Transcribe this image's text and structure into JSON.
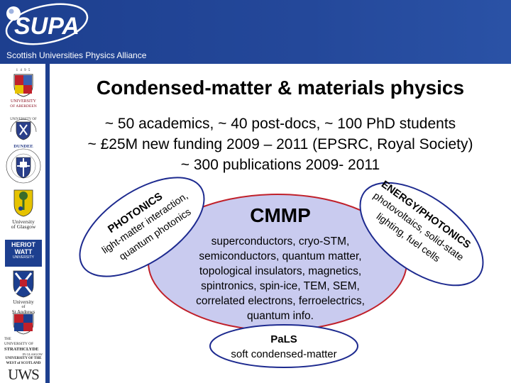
{
  "header": {
    "logo_text": "SUPA",
    "tagline": "Scottish Universities Physics Alliance",
    "colors": {
      "bar": "#1d3f8f",
      "accent": "#2a52a6"
    }
  },
  "sidebar": {
    "universities": [
      {
        "name": "University of Aberdeen",
        "label_top": "UNIVERSITY",
        "label_bottom": "OF ABERDEEN",
        "years": "1 4 9 5"
      },
      {
        "name": "University of Dundee",
        "label": "DUNDEE",
        "ring": "UNIVERSITY OF"
      },
      {
        "name": "University of Edinburgh",
        "ring": "THE UNIVERSITY OF EDINBURGH"
      },
      {
        "name": "University of Glasgow",
        "label_top": "University",
        "label_bottom": "of Glasgow"
      },
      {
        "name": "Heriot-Watt University",
        "label_top": "HERIOT",
        "label_mid": "WATT",
        "label_bottom": "UNIVERSITY"
      },
      {
        "name": "University of St Andrews",
        "label_top": "University",
        "label_mid": "of",
        "label_bottom": "St Andrews"
      },
      {
        "name": "University of Strathclyde",
        "label_top": "THE",
        "label_mid": "UNIVERSITY OF",
        "label_bottom": "STRATHCLYDE",
        "label_extra": "IN GLASGOW"
      },
      {
        "name": "University of the West of Scotland",
        "label_top": "UNIVERSITY OF THE",
        "label_mid": "WEST of SCOTLAND",
        "label_bottom": "UWS"
      }
    ]
  },
  "main": {
    "title": "Condensed-matter & materials physics",
    "stats": [
      "~ 50 academics, ~ 40 post-docs, ~ 100 PhD students",
      "~ £25M new funding 2009 – 2011 (EPSRC, Royal Society)",
      "~ 300 publications 2009- 2011"
    ]
  },
  "cmmp": {
    "title": "CMMP",
    "lines": [
      "superconductors, cryo-STM,",
      "semiconductors, quantum matter,",
      "topological insulators, magnetics,",
      "spintronics, spin-ice, TEM, SEM,",
      "correlated electrons, ferroelectrics,",
      "quantum info."
    ],
    "fill": "#c9cbef",
    "stroke": "#c0202a"
  },
  "photonics": {
    "title": "PHOTONICS",
    "lines": [
      "light-matter interaction,",
      "quantum photonics"
    ]
  },
  "energy": {
    "title": "ENERGY/PHOTONICS",
    "lines": [
      "photovoltaics, solid-state",
      "lighting, fuel cells"
    ]
  },
  "pals": {
    "title": "PaLS",
    "subtitle": "soft condensed-matter"
  },
  "bubble_stroke": "#1d2a8f"
}
